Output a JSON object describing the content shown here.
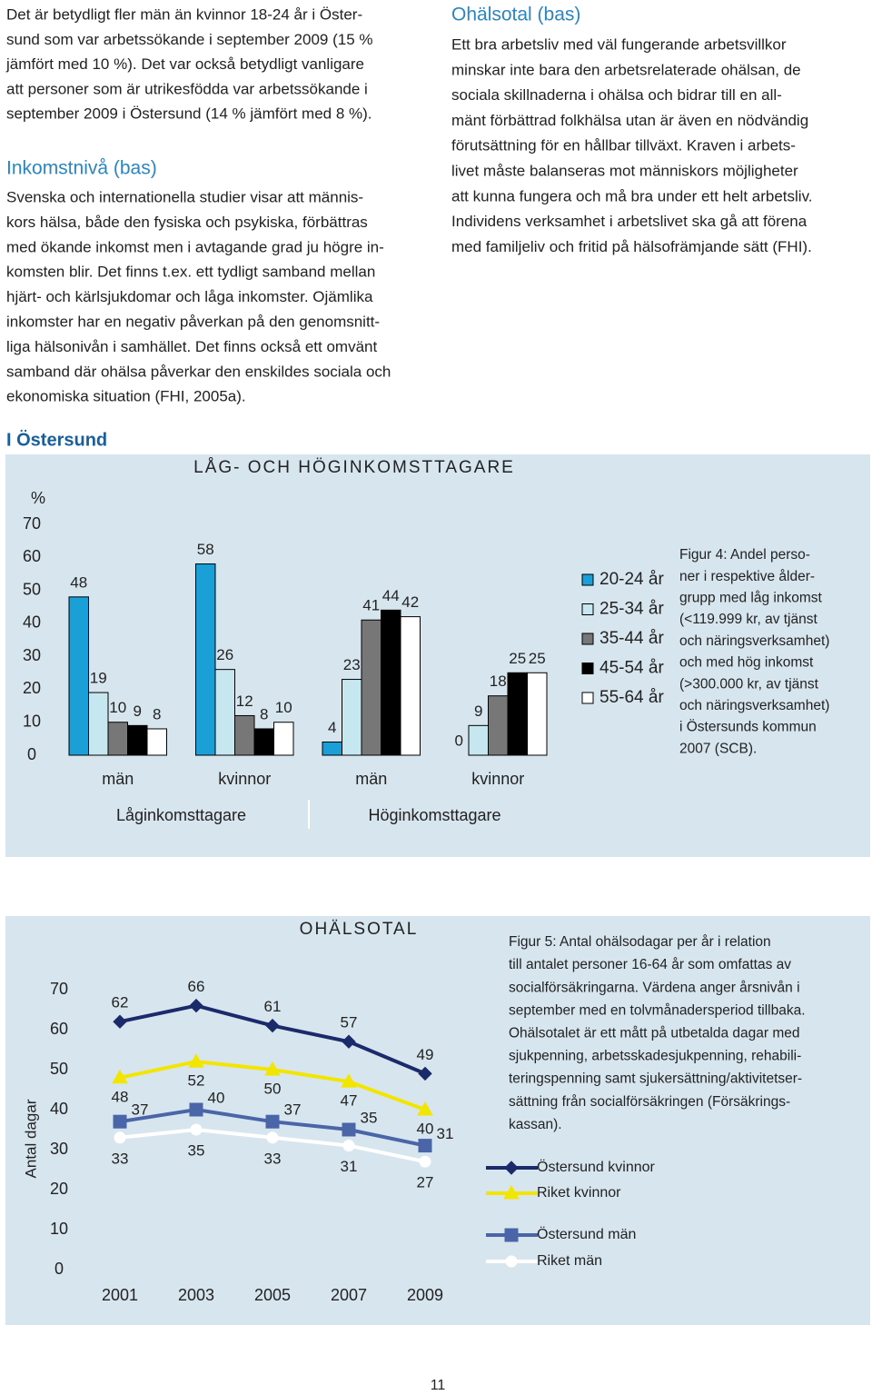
{
  "left_column": {
    "intro_lines": [
      "Det är betydligt fler män än kvinnor 18-24 år i Öster-",
      "sund som var arbetssökande i september 2009 (15 %",
      "jämfört med 10 %). Det var också betydligt vanligare",
      "att personer som är utrikesfödda var arbetssökande i",
      "september 2009 i Östersund (14 % jämfört med 8 %)."
    ],
    "heading": "Inkomstnivå (bas)",
    "body_lines": [
      "Svenska och internationella studier visar att männis-",
      "kors hälsa, både den fysiska och psykiska, förbättras",
      "med ökande inkomst men i avtagande grad ju högre in-",
      "komsten blir. Det finns t.ex. ett tydligt samband mellan",
      "hjärt- och kärlsjukdomar och låga inkomster. Ojämlika",
      "inkomster har en negativ påverkan på den genomsnitt-",
      "liga hälsonivån i samhället. Det finns också ett omvänt",
      "samband där ohälsa påverkar den enskildes sociala och",
      "ekonomiska situation (FHI, 2005a)."
    ]
  },
  "right_column": {
    "heading": "Ohälsotal (bas)",
    "body_lines": [
      "Ett bra arbetsliv med väl fungerande arbetsvillkor",
      "minskar inte bara den arbetsrelaterade ohälsan, de",
      "sociala skillnaderna i ohälsa och bidrar till en all-",
      "mänt förbättrad folkhälsa utan är även en nödvändig",
      "förutsättning för en hållbar tillväxt. Kraven i arbets-",
      "livet måste balanseras mot människors möjligheter",
      "att kunna fungera och må bra under ett helt arbetsliv.",
      "Individens verksamhet i arbetslivet ska gå att förena",
      "med familjeliv och fritid på hälsofrämjande sätt (FHI)."
    ]
  },
  "section_label": "I Östersund",
  "chart_data": [
    {
      "type": "bar",
      "title": "LÅG- OCH HÖGINKOMSTTAGARE",
      "y_label": "%",
      "categories": [
        "män",
        "kvinnor",
        "män",
        "kvinnor"
      ],
      "groups": [
        "Låginkomsttagare",
        "Höginkomsttagare"
      ],
      "series": [
        {
          "name": "20-24 år",
          "color": "#1a9fd6",
          "values": [
            48,
            58,
            4,
            0
          ]
        },
        {
          "name": "25-34 år",
          "color": "#c6e6f0",
          "values": [
            19,
            26,
            23,
            9
          ]
        },
        {
          "name": "35-44 år",
          "color": "#777777",
          "values": [
            10,
            12,
            41,
            18
          ]
        },
        {
          "name": "45-54 år",
          "color": "#000000",
          "values": [
            9,
            8,
            44,
            25
          ]
        },
        {
          "name": "55-64 år",
          "color": "#ffffff",
          "values": [
            8,
            10,
            42,
            25
          ]
        }
      ],
      "ylim": [
        0,
        70
      ],
      "yticks": [
        0,
        10,
        20,
        30,
        40,
        50,
        60,
        70
      ],
      "caption_lines": [
        "Figur 4: Andel perso-",
        "ner i respektive ålder-",
        "grupp med låg inkomst",
        "(<119.999 kr, av tjänst",
        "och näringsverksamhet)",
        "och med hög inkomst",
        "(>300.000 kr, av tjänst",
        "och näringsverksamhet)",
        "i Östersunds kommun",
        "2007 (SCB)."
      ]
    },
    {
      "type": "line",
      "title": "OHÄLSOTAL",
      "y_label": "Antal dagar",
      "x": [
        2001,
        2003,
        2005,
        2007,
        2009
      ],
      "xticks": [
        2001,
        2003,
        2005,
        2007,
        2009
      ],
      "xlim": [
        2000,
        2010
      ],
      "ylim": [
        0,
        70
      ],
      "yticks": [
        0,
        10,
        20,
        30,
        40,
        50,
        60,
        70
      ],
      "series": [
        {
          "name": "Östersund kvinnor",
          "color": "#1b2a6b",
          "marker": "diamond",
          "values": [
            62,
            66,
            61,
            57,
            49
          ]
        },
        {
          "name": "Riket kvinnor",
          "color": "#f2e600",
          "marker": "triangle",
          "values": [
            48,
            52,
            50,
            47,
            40
          ]
        },
        {
          "name": "Östersund män",
          "color": "#4a66a8",
          "marker": "square",
          "values": [
            37,
            40,
            37,
            35,
            31
          ]
        },
        {
          "name": "Riket män",
          "color": "#ffffff",
          "marker": "circle",
          "values": [
            33,
            35,
            33,
            31,
            27
          ]
        }
      ],
      "caption_lines": [
        "Figur 5: Antal ohälsodagar per år i relation",
        "till antalet personer 16-64 år som omfattas av",
        "socialförsäkringarna. Värdena anger årsnivån i",
        "september med en tolvmånadersperiod tillbaka.",
        "Ohälsotalet är ett mått på utbetalda dagar med",
        "sjukpenning, arbetsskadesjukpenning, rehabili-",
        "teringspenning samt sjukersättning/aktivitetser-",
        "sättning från socialförsäkringen (Försäkrings-",
        "kassan)."
      ]
    }
  ],
  "page_number": "11"
}
